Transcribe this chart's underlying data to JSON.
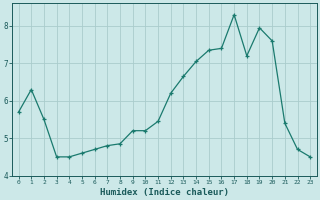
{
  "x": [
    0,
    1,
    2,
    3,
    4,
    5,
    6,
    7,
    8,
    9,
    10,
    11,
    12,
    13,
    14,
    15,
    16,
    17,
    18,
    19,
    20,
    21,
    22,
    23
  ],
  "y": [
    5.7,
    6.3,
    5.5,
    4.5,
    4.5,
    4.6,
    4.7,
    4.8,
    4.85,
    5.2,
    5.2,
    5.45,
    6.2,
    6.65,
    7.05,
    7.35,
    7.4,
    8.3,
    7.2,
    7.95,
    7.6,
    5.4,
    4.7,
    4.5
  ],
  "title": "",
  "xlabel": "Humidex (Indice chaleur)",
  "ylabel": "",
  "ylim": [
    4.0,
    8.6
  ],
  "yticks": [
    4,
    5,
    6,
    7,
    8
  ],
  "xticks": [
    0,
    1,
    2,
    3,
    4,
    5,
    6,
    7,
    8,
    9,
    10,
    11,
    12,
    13,
    14,
    15,
    16,
    17,
    18,
    19,
    20,
    21,
    22,
    23
  ],
  "line_color": "#1a7a6e",
  "marker": "+",
  "bg_color": "#cce8e8",
  "grid_color": "#aacccc",
  "tick_color": "#1a5a5a",
  "label_color": "#1a5a5a"
}
